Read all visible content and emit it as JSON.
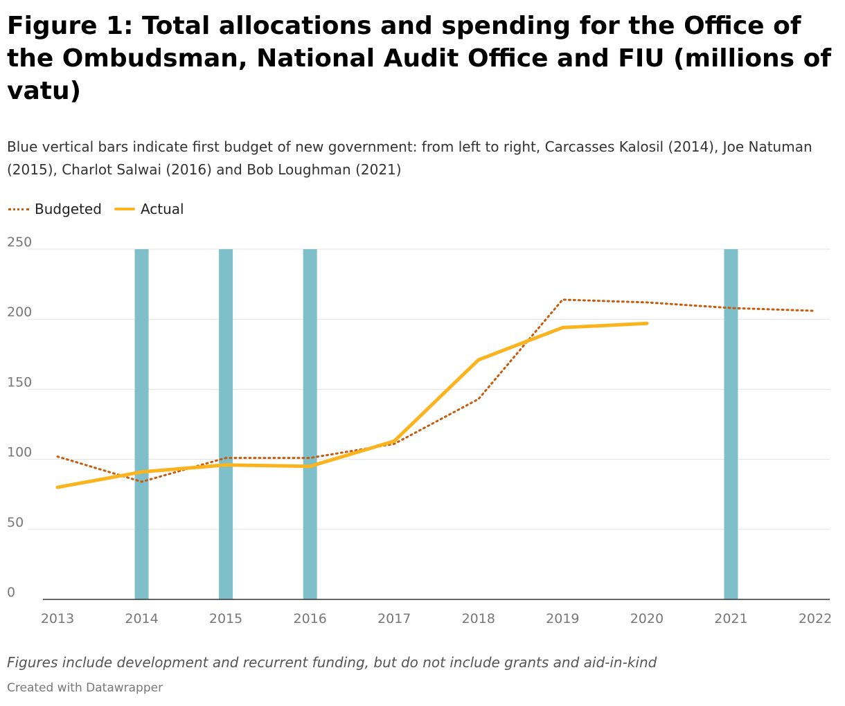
{
  "title": "Figure 1: Total allocations and spending for the Office of the Ombudsman, National Audit Office and FIU (millions of vatu)",
  "subtitle": "Blue vertical bars indicate first budget of new government: from left to right, Carcasses Kalosil (2014), Joe Natuman (2015), Charlot Salwai (2016) and Bob Loughman (2021)",
  "note": "Figures include development and recurrent funding, but do not include grants and aid-in-kind",
  "credit": "Created with Datawrapper",
  "colors": {
    "budgeted": "#c65b0b",
    "actual": "#fbb41e",
    "bars": "#7fbfca",
    "grid": "#e3e3e3"
  },
  "chart_data": {
    "type": "line",
    "x": [
      2013,
      2014,
      2015,
      2016,
      2017,
      2018,
      2019,
      2020,
      2021,
      2022
    ],
    "series": [
      {
        "name": "Budgeted",
        "style": "dotted",
        "values": [
          102,
          84,
          101,
          101,
          111,
          143,
          214,
          212,
          208,
          206
        ]
      },
      {
        "name": "Actual",
        "style": "solid",
        "values": [
          80,
          91,
          96,
          95,
          113,
          171,
          194,
          197,
          null,
          null
        ]
      }
    ],
    "government_bars": [
      2014,
      2015,
      2016,
      2021
    ],
    "xlim": [
      2013,
      2022
    ],
    "ylim": [
      0,
      250
    ],
    "yticks": [
      0,
      50,
      100,
      150,
      200,
      250
    ],
    "xticks": [
      2013,
      2014,
      2015,
      2016,
      2017,
      2018,
      2019,
      2020,
      2021,
      2022
    ],
    "grid": true,
    "legend_position": "top-left",
    "xlabel": "",
    "ylabel": ""
  }
}
